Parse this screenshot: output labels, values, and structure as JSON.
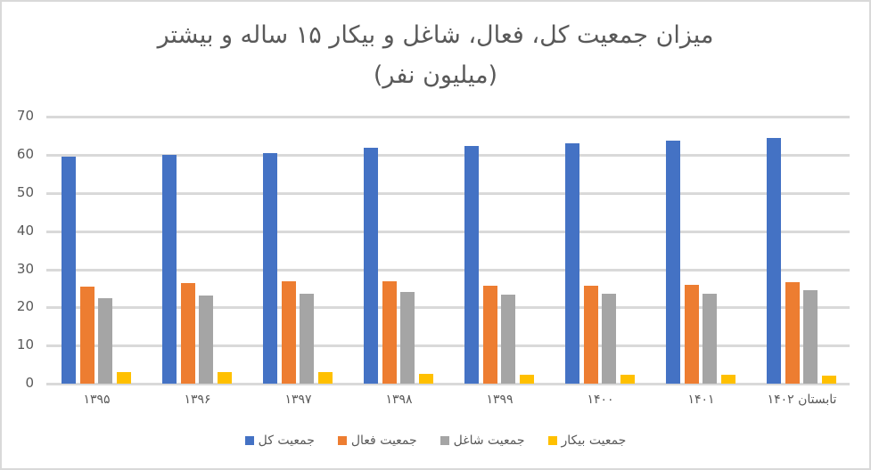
{
  "chart_data": {
    "type": "bar",
    "title": "میزان جمعیت کل، فعال، شاغل و بیکار ۱۵ ساله و بیشتر",
    "subtitle": "(میلیون نفر)",
    "xlabel": "",
    "ylabel": "",
    "ylim": [
      0,
      70
    ],
    "yticks": [
      0,
      10,
      20,
      30,
      40,
      50,
      60,
      70
    ],
    "grid": true,
    "legend_position": "bottom",
    "categories": [
      "۱۳۹۵",
      "۱۳۹۶",
      "۱۳۹۷",
      "۱۳۹۸",
      "۱۳۹۹",
      "۱۴۰۰",
      "۱۴۰۱",
      "تابستان ۱۴۰۲"
    ],
    "series": [
      {
        "name": "جمعیت کل",
        "color": "#4472c4",
        "values": [
          59.5,
          60.0,
          60.6,
          61.8,
          62.4,
          63.1,
          63.8,
          64.5
        ]
      },
      {
        "name": "جمعیت فعال",
        "color": "#ed7d31",
        "values": [
          25.5,
          26.4,
          26.9,
          26.9,
          25.6,
          25.8,
          26.0,
          26.7
        ]
      },
      {
        "name": "جمعیت شاغل",
        "color": "#a5a5a5",
        "values": [
          22.4,
          23.1,
          23.6,
          24.1,
          23.3,
          23.5,
          23.7,
          24.6
        ]
      },
      {
        "name": "جمعیت بیکار",
        "color": "#ffc000",
        "values": [
          3.0,
          3.0,
          3.0,
          2.5,
          2.3,
          2.3,
          2.3,
          2.1
        ]
      }
    ]
  },
  "colors": {
    "text": "#595959",
    "grid": "#d9d9d9",
    "border": "#d9d9d9"
  }
}
